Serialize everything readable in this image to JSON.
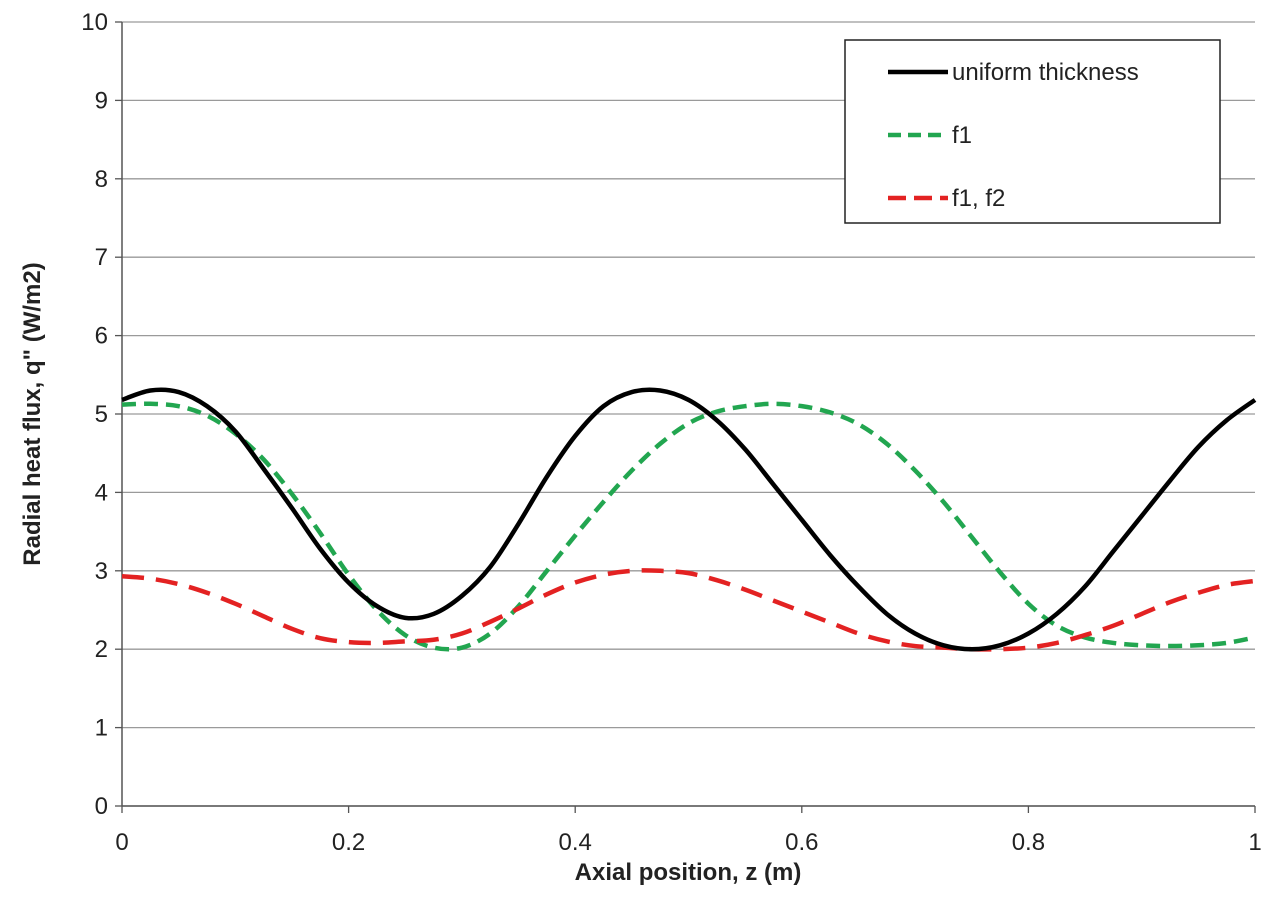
{
  "chart_data": {
    "type": "line",
    "title": "",
    "xlabel": "Axial position,  z (m)",
    "ylabel": "Radial heat flux, q\" (W/m2)",
    "xlim": [
      0,
      1
    ],
    "ylim": [
      0,
      10
    ],
    "x_ticks": [
      0,
      0.2,
      0.4,
      0.6,
      0.8,
      1
    ],
    "x_tick_labels": [
      "0",
      "0.2",
      "0.4",
      "0.6",
      "0.8",
      "1"
    ],
    "y_ticks": [
      0,
      1,
      2,
      3,
      4,
      5,
      6,
      7,
      8,
      9,
      10
    ],
    "y_tick_labels": [
      "0",
      "1",
      "2",
      "3",
      "4",
      "5",
      "6",
      "7",
      "8",
      "9",
      "10"
    ],
    "grid": "horizontal",
    "legend_position": "top-right",
    "series": [
      {
        "name": "uniform thickness",
        "color": "#000000",
        "dash": "solid",
        "x": [
          0,
          0.025,
          0.05,
          0.075,
          0.1,
          0.125,
          0.15,
          0.175,
          0.2,
          0.225,
          0.25,
          0.275,
          0.3,
          0.325,
          0.35,
          0.375,
          0.4,
          0.425,
          0.45,
          0.475,
          0.5,
          0.525,
          0.55,
          0.575,
          0.6,
          0.625,
          0.65,
          0.675,
          0.7,
          0.725,
          0.75,
          0.775,
          0.8,
          0.825,
          0.85,
          0.875,
          0.9,
          0.925,
          0.95,
          0.975,
          1
        ],
        "y": [
          5.18,
          5.3,
          5.28,
          5.1,
          4.78,
          4.3,
          3.8,
          3.28,
          2.85,
          2.55,
          2.4,
          2.45,
          2.68,
          3.05,
          3.6,
          4.2,
          4.72,
          5.1,
          5.28,
          5.3,
          5.18,
          4.92,
          4.55,
          4.1,
          3.65,
          3.2,
          2.8,
          2.45,
          2.2,
          2.05,
          2.0,
          2.05,
          2.2,
          2.45,
          2.8,
          3.25,
          3.7,
          4.15,
          4.58,
          4.92,
          5.18
        ]
      },
      {
        "name": "f1",
        "color": "#22a650",
        "dash": "dashed",
        "x": [
          0,
          0.025,
          0.05,
          0.075,
          0.1,
          0.125,
          0.15,
          0.175,
          0.2,
          0.225,
          0.25,
          0.275,
          0.3,
          0.325,
          0.35,
          0.375,
          0.4,
          0.425,
          0.45,
          0.475,
          0.5,
          0.525,
          0.55,
          0.575,
          0.6,
          0.625,
          0.65,
          0.675,
          0.7,
          0.725,
          0.75,
          0.775,
          0.8,
          0.825,
          0.85,
          0.875,
          0.9,
          0.925,
          0.95,
          0.975,
          1
        ],
        "y": [
          5.12,
          5.13,
          5.1,
          4.98,
          4.75,
          4.42,
          3.98,
          3.48,
          2.95,
          2.5,
          2.18,
          2.02,
          2.02,
          2.2,
          2.55,
          3.0,
          3.45,
          3.88,
          4.28,
          4.62,
          4.88,
          5.03,
          5.1,
          5.13,
          5.1,
          5.02,
          4.87,
          4.62,
          4.28,
          3.88,
          3.43,
          2.98,
          2.58,
          2.3,
          2.15,
          2.08,
          2.05,
          2.04,
          2.05,
          2.08,
          2.15
        ]
      },
      {
        "name": "f1, f2",
        "color": "#e32222",
        "dash": "dashed",
        "x": [
          0,
          0.025,
          0.05,
          0.075,
          0.1,
          0.125,
          0.15,
          0.175,
          0.2,
          0.225,
          0.25,
          0.275,
          0.3,
          0.325,
          0.35,
          0.375,
          0.4,
          0.425,
          0.45,
          0.475,
          0.5,
          0.525,
          0.55,
          0.575,
          0.6,
          0.625,
          0.65,
          0.675,
          0.7,
          0.725,
          0.75,
          0.775,
          0.8,
          0.825,
          0.85,
          0.875,
          0.9,
          0.925,
          0.95,
          0.975,
          1
        ],
        "y": [
          2.93,
          2.9,
          2.83,
          2.72,
          2.58,
          2.42,
          2.26,
          2.14,
          2.09,
          2.08,
          2.1,
          2.12,
          2.2,
          2.35,
          2.52,
          2.7,
          2.85,
          2.95,
          3.0,
          3.0,
          2.97,
          2.88,
          2.76,
          2.62,
          2.48,
          2.34,
          2.2,
          2.1,
          2.04,
          2.02,
          2.0,
          2.0,
          2.02,
          2.08,
          2.18,
          2.3,
          2.45,
          2.6,
          2.72,
          2.82,
          2.87
        ]
      }
    ]
  }
}
